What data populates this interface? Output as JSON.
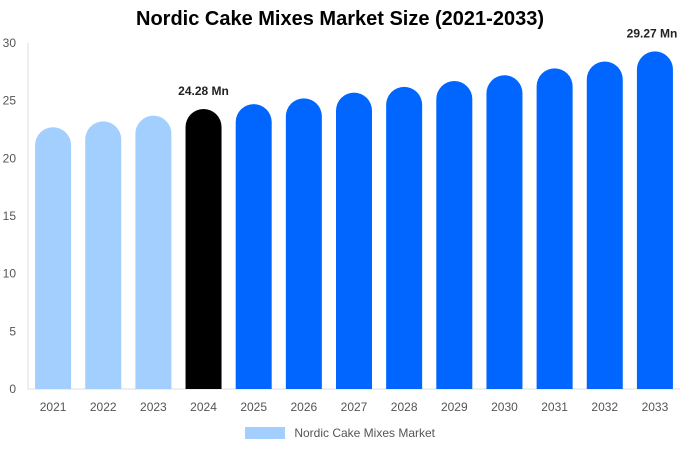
{
  "chart_data": {
    "type": "bar",
    "title": "Nordic Cake Mixes Market Size (2021-2033)",
    "categories": [
      "2021",
      "2022",
      "2023",
      "2024",
      "2025",
      "2026",
      "2027",
      "2028",
      "2029",
      "2030",
      "2031",
      "2032",
      "2033"
    ],
    "series": [
      {
        "name": "Nordic Cake Mixes Market",
        "values": [
          22.7,
          23.2,
          23.7,
          24.28,
          24.7,
          25.2,
          25.7,
          26.2,
          26.7,
          27.2,
          27.8,
          28.4,
          29.27
        ]
      }
    ],
    "ylim": [
      0,
      30
    ],
    "yticks": [
      0,
      5,
      10,
      15,
      20,
      25,
      30
    ],
    "xlabel": "",
    "ylabel": "",
    "grid": false,
    "legend_position": "bottom-center",
    "bar_colors": [
      "#a3cfff",
      "#a3cfff",
      "#a3cfff",
      "#000000",
      "#0066ff",
      "#0066ff",
      "#0066ff",
      "#0066ff",
      "#0066ff",
      "#0066ff",
      "#0066ff",
      "#0066ff",
      "#0066ff"
    ],
    "legend_color": "#a3cfff",
    "annotations": [
      {
        "category": "2024",
        "text": "24.28 Mn"
      },
      {
        "category": "2033",
        "text": "29.27 Mn"
      }
    ]
  }
}
